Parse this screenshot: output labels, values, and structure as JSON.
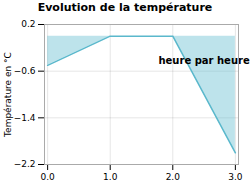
{
  "chart_data": {
    "type": "line",
    "title": "Evolution de la température",
    "ylabel": "Température en °C",
    "x": [
      0,
      1,
      2,
      3
    ],
    "series": [
      {
        "name": "Température",
        "color": "#5ab8cc",
        "values": [
          -0.5,
          0.0,
          0.0,
          -2.0
        ]
      }
    ],
    "xlim": [
      -0.05,
      3.05
    ],
    "xticks": [
      0,
      1,
      2,
      3
    ],
    "ylim": [
      -2.2,
      0.2
    ],
    "yticks": [
      0.2,
      -0.6,
      -1.4,
      -2.2
    ],
    "grid": true,
    "annotations": [
      {
        "text": "heure par heure",
        "x": 2.5,
        "y": -0.42
      }
    ]
  }
}
